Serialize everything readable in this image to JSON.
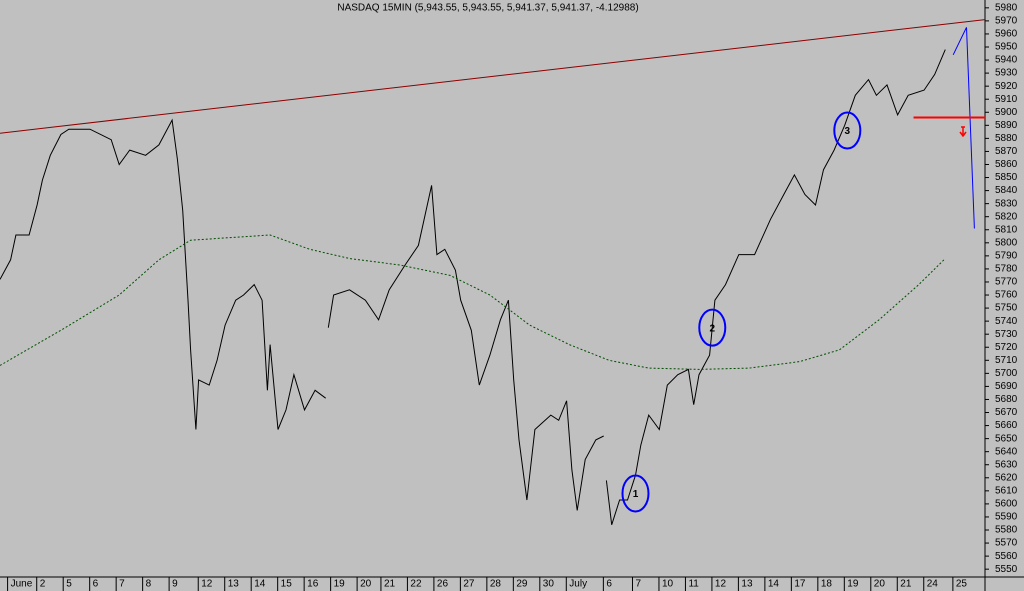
{
  "chart_data": {
    "type": "line",
    "title": "NASDAQ 15MIN (5,943.55, 5,943.55, 5,941.37, 5,941.37, -4.12988)",
    "xlim": [
      -0.3,
      36.9
    ],
    "ylim": [
      5544,
      5986
    ],
    "xticks": [
      {
        "value": 0.1,
        "label": "June"
      },
      {
        "value": 1.2,
        "label": "2"
      },
      {
        "value": 2.2,
        "label": "5"
      },
      {
        "value": 3.2,
        "label": "6"
      },
      {
        "value": 4.2,
        "label": "7"
      },
      {
        "value": 5.2,
        "label": "8"
      },
      {
        "value": 6.2,
        "label": "9"
      },
      {
        "value": 7.3,
        "label": "12"
      },
      {
        "value": 8.3,
        "label": "13"
      },
      {
        "value": 9.3,
        "label": "14"
      },
      {
        "value": 10.3,
        "label": "15"
      },
      {
        "value": 11.3,
        "label": "16"
      },
      {
        "value": 12.3,
        "label": "19"
      },
      {
        "value": 13.3,
        "label": "20"
      },
      {
        "value": 14.2,
        "label": "21"
      },
      {
        "value": 15.2,
        "label": "22"
      },
      {
        "value": 16.2,
        "label": "26"
      },
      {
        "value": 17.2,
        "label": "27"
      },
      {
        "value": 18.2,
        "label": "28"
      },
      {
        "value": 19.2,
        "label": "29"
      },
      {
        "value": 20.2,
        "label": "30"
      },
      {
        "value": 21.2,
        "label": "July"
      },
      {
        "value": 22.6,
        "label": "6"
      },
      {
        "value": 23.7,
        "label": "7"
      },
      {
        "value": 24.7,
        "label": "10"
      },
      {
        "value": 25.7,
        "label": "11"
      },
      {
        "value": 26.7,
        "label": "12"
      },
      {
        "value": 27.7,
        "label": "13"
      },
      {
        "value": 28.7,
        "label": "14"
      },
      {
        "value": 29.7,
        "label": "17"
      },
      {
        "value": 30.7,
        "label": "18"
      },
      {
        "value": 31.7,
        "label": "19"
      },
      {
        "value": 32.7,
        "label": "20"
      },
      {
        "value": 33.7,
        "label": "21"
      },
      {
        "value": 34.7,
        "label": "24"
      },
      {
        "value": 35.8,
        "label": "25"
      }
    ],
    "yticks": [
      5550,
      5560,
      5570,
      5580,
      5590,
      5600,
      5610,
      5620,
      5630,
      5640,
      5650,
      5660,
      5670,
      5680,
      5690,
      5700,
      5710,
      5720,
      5730,
      5740,
      5750,
      5760,
      5770,
      5780,
      5790,
      5800,
      5810,
      5820,
      5830,
      5840,
      5850,
      5860,
      5870,
      5880,
      5890,
      5900,
      5910,
      5920,
      5930,
      5940,
      5950,
      5960,
      5970,
      5980
    ],
    "series": [
      {
        "color": "#000000",
        "x": [
          -0.3,
          0.1,
          0.3,
          0.8,
          1.1,
          1.3,
          1.6,
          2.0,
          2.3,
          3.1,
          3.9,
          4.2,
          4.6,
          5.2,
          5.7,
          6.2,
          6.4,
          6.6,
          6.8,
          6.9,
          7.1,
          7.2,
          7.6,
          7.9,
          8.2,
          8.6,
          8.9,
          9.3,
          9.6,
          9.8,
          9.9,
          10.2,
          10.5,
          10.8,
          11.2,
          11.6,
          12.0,
          12.05,
          12.1,
          12.3,
          12.9,
          13.5,
          14.0,
          14.4,
          15.0,
          15.5,
          16.0,
          16.2,
          16.5,
          16.9,
          17.1,
          17.5,
          17.8,
          18.2,
          18.6,
          18.9,
          19.1,
          19.3,
          19.6,
          19.9,
          20.5,
          20.8,
          21.1,
          21.3,
          21.5,
          21.8,
          22.2,
          22.5,
          22.55,
          22.6,
          22.8,
          23.1,
          23.4,
          23.7,
          23.9,
          24.2,
          24.6,
          24.9,
          25.3,
          25.7,
          25.9,
          26.1,
          26.5,
          26.7,
          27.1,
          27.6,
          28.2,
          28.8,
          29.3,
          29.7,
          30.1,
          30.5,
          30.8,
          31.2,
          31.6,
          32.0,
          32.5,
          32.8,
          33.2,
          33.6,
          34.0,
          34.6,
          35.0,
          35.4
        ],
        "values": [
          5772,
          5787,
          5806,
          5806,
          5829,
          5848,
          5867,
          5883,
          5887,
          5887,
          5879,
          5860,
          5871,
          5867,
          5875,
          5894,
          5864,
          5825,
          5756,
          5718,
          5657,
          5695,
          5691,
          5710,
          5737,
          5756,
          5760,
          5768,
          5756,
          5687,
          5722,
          5657,
          5672,
          5699,
          5672,
          5687,
          5681,
          null,
          5735,
          5760,
          5764,
          5756,
          5741,
          5764,
          5783,
          5798,
          5844,
          5791,
          5795,
          5779,
          5756,
          5733,
          5691,
          5714,
          5741,
          5756,
          5695,
          5649,
          5603,
          5657,
          5668,
          5664,
          5679,
          5626,
          5595,
          5634,
          5649,
          5652,
          null,
          5618,
          5584,
          5603,
          5603,
          5622,
          5645,
          5668,
          5657,
          5691,
          5699,
          5703,
          5676,
          5699,
          5714,
          5756,
          5768,
          5791,
          5791,
          5818,
          5837,
          5852,
          5837,
          5829,
          5856,
          5871,
          5890,
          5913,
          5925,
          5913,
          5921,
          5898,
          5913,
          5917,
          5929,
          5948
        ]
      },
      {
        "color": "#004d00",
        "dash": true,
        "x": [
          -0.3,
          2.0,
          4.2,
          5.7,
          6.9,
          8.4,
          9.9,
          11.4,
          12.9,
          14.8,
          16.7,
          18.2,
          19.7,
          21.2,
          22.7,
          24.2,
          26.1,
          28.0,
          29.9,
          31.4,
          32.9,
          34.4,
          35.4
        ],
        "values": [
          5706,
          5733,
          5760,
          5787,
          5802,
          5804,
          5806,
          5795,
          5788,
          5783,
          5775,
          5760,
          5737,
          5722,
          5710,
          5704,
          5703,
          5704,
          5709,
          5718,
          5741,
          5768,
          5788
        ]
      },
      {
        "color": "#8b0000",
        "x": [
          -0.3,
          36.9
        ],
        "values": [
          5884,
          5971
        ]
      },
      {
        "color": "#0000ff",
        "x": [
          35.7,
          36.2,
          36.5
        ],
        "values": [
          5944,
          5965,
          5811
        ]
      },
      {
        "color": "#ff0000",
        "width": 2,
        "x": [
          34.2,
          36.9
        ],
        "values": [
          5896,
          5896
        ]
      }
    ],
    "annotations": [
      {
        "text": "1",
        "x": 23.7,
        "y": 5608
      },
      {
        "text": "2",
        "x": 26.6,
        "y": 5735
      },
      {
        "text": "3",
        "x": 31.7,
        "y": 5886
      }
    ]
  }
}
